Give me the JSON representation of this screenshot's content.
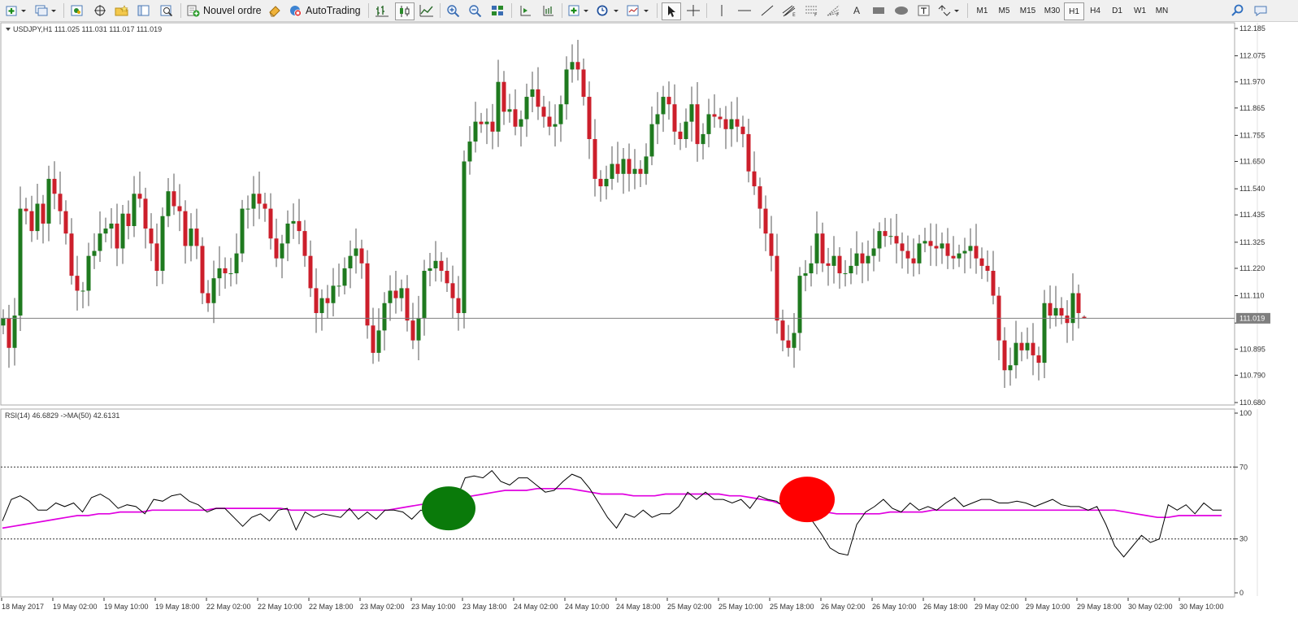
{
  "toolbar": {
    "new_order_label": "Nouvel ordre",
    "autotrading_label": "AutoTrading",
    "text_tool_label": "A",
    "timeframes": [
      "M1",
      "M5",
      "M15",
      "M30",
      "H1",
      "H4",
      "D1",
      "W1",
      "MN"
    ],
    "active_timeframe": "H1"
  },
  "main_chart": {
    "header": "USDJPY,H1  111.025 111.031 111.017 111.019",
    "price_ticks": [
      "112.185",
      "112.075",
      "111.970",
      "111.865",
      "111.755",
      "111.650",
      "111.540",
      "111.435",
      "111.325",
      "111.220",
      "111.110",
      "111.000",
      "110.895",
      "110.790",
      "110.680"
    ],
    "current_price_label": "111.019",
    "current_price": 111.019,
    "colors": {
      "bull": "#1f7a1f",
      "bear": "#cc1f2b",
      "wick": "#555555",
      "axis": "#808080"
    }
  },
  "chart_data": [
    {
      "type": "candlestick",
      "title": "USDJPY,H1",
      "ylim": [
        110.68,
        112.185
      ],
      "x_labels": [
        "18 May 2017",
        "19 May 02:00",
        "19 May 10:00",
        "19 May 18:00",
        "22 May 02:00",
        "22 May 10:00",
        "22 May 18:00",
        "23 May 02:00",
        "23 May 10:00",
        "23 May 18:00",
        "24 May 02:00",
        "24 May 10:00",
        "24 May 18:00",
        "25 May 02:00",
        "25 May 10:00",
        "25 May 18:00",
        "26 May 02:00",
        "26 May 10:00",
        "26 May 18:00",
        "29 May 02:00",
        "29 May 10:00",
        "29 May 18:00",
        "30 May 02:00",
        "30 May 10:00"
      ],
      "closes": [
        111.02,
        110.9,
        111.03,
        111.46,
        111.45,
        111.37,
        111.48,
        111.4,
        111.58,
        111.52,
        111.45,
        111.36,
        111.19,
        111.13,
        111.13,
        111.27,
        111.29,
        111.36,
        111.38,
        111.4,
        111.3,
        111.44,
        111.39,
        111.52,
        111.5,
        111.38,
        111.32,
        111.21,
        111.43,
        111.53,
        111.47,
        111.45,
        111.31,
        111.38,
        111.31,
        111.12,
        111.08,
        111.18,
        111.22,
        111.2,
        111.2,
        111.28,
        111.46,
        111.46,
        111.52,
        111.48,
        111.46,
        111.34,
        111.26,
        111.32,
        111.4,
        111.41,
        111.37,
        111.27,
        111.14,
        111.04,
        111.1,
        111.08,
        111.15,
        111.15,
        111.22,
        111.27,
        111.3,
        111.24,
        110.99,
        110.88,
        110.97,
        111.08,
        111.13,
        111.1,
        111.14,
        111.01,
        110.93,
        111.02,
        111.21,
        111.22,
        111.25,
        111.21,
        111.16,
        111.1,
        111.04,
        111.65,
        111.73,
        111.81,
        111.8,
        111.81,
        111.77,
        111.97,
        111.85,
        111.86,
        111.79,
        111.82,
        111.91,
        111.94,
        111.87,
        111.83,
        111.79,
        111.8,
        111.88,
        112.02,
        112.05,
        112.02,
        111.91,
        111.74,
        111.58,
        111.55,
        111.58,
        111.64,
        111.6,
        111.66,
        111.6,
        111.62,
        111.6,
        111.67,
        111.8,
        111.84,
        111.91,
        111.88,
        111.77,
        111.74,
        111.81,
        111.88,
        111.72,
        111.76,
        111.84,
        111.83,
        111.82,
        111.78,
        111.82,
        111.79,
        111.76,
        111.61,
        111.55,
        111.46,
        111.36,
        111.27,
        111.01,
        110.93,
        110.9,
        110.96,
        111.19,
        111.2,
        111.24,
        111.36,
        111.24,
        111.23,
        111.27,
        111.2,
        111.2,
        111.23,
        111.28,
        111.24,
        111.27,
        111.3,
        111.37,
        111.35,
        111.35,
        111.32,
        111.29,
        111.26,
        111.24,
        111.32,
        111.33,
        111.31,
        111.3,
        111.32,
        111.27,
        111.26,
        111.28,
        111.29,
        111.31,
        111.26,
        111.23,
        111.21,
        111.11,
        110.93,
        110.81,
        110.83,
        110.92,
        110.89,
        110.92,
        110.87,
        110.84,
        111.08,
        111.03,
        111.06,
        111.03,
        111.0,
        111.12,
        111.04,
        111.02
      ],
      "last": {
        "open": 111.025,
        "high": 111.031,
        "low": 111.017,
        "close": 111.019
      }
    },
    {
      "type": "line",
      "title": "RSI(14) 46.6829  ->MA(50) 42.6131",
      "ylim": [
        0,
        100
      ],
      "y_ticks": [
        100,
        70,
        30,
        0
      ],
      "levels": [
        70,
        30
      ],
      "series": [
        {
          "name": "RSI(14)",
          "color": "#000000",
          "values": [
            40,
            52,
            54,
            51,
            46,
            46,
            50,
            48,
            50,
            45,
            53,
            55,
            52,
            47,
            49,
            48,
            44,
            52,
            51,
            54,
            55,
            51,
            49,
            45,
            47,
            47,
            42,
            37,
            42,
            44,
            40,
            46,
            47,
            35,
            45,
            42,
            44,
            43,
            42,
            47,
            41,
            45,
            41,
            46,
            46,
            45,
            41,
            46,
            45,
            50,
            48,
            52,
            64,
            65,
            64,
            68,
            62,
            60,
            64,
            64,
            60,
            56,
            57,
            62,
            66,
            64,
            58,
            50,
            42,
            36,
            44,
            42,
            46,
            42,
            44,
            44,
            48,
            56,
            52,
            56,
            52,
            52,
            50,
            52,
            47,
            54,
            52,
            51,
            47,
            52,
            44,
            40,
            33,
            25,
            22,
            21,
            38,
            45,
            48,
            52,
            47,
            45,
            50,
            46,
            48,
            46,
            50,
            53,
            48,
            50,
            52,
            52,
            50,
            50,
            51,
            50,
            48,
            50,
            52,
            49,
            48,
            48,
            46,
            48,
            38,
            26,
            20,
            26,
            32,
            28,
            30,
            49,
            46,
            49,
            44,
            50,
            46,
            46
          ]
        },
        {
          "name": "MA(50)",
          "color": "#e000e0",
          "values": [
            36,
            37,
            38,
            39,
            40,
            41,
            42,
            43,
            43,
            44,
            44,
            45,
            45,
            45,
            46,
            46,
            46,
            46,
            46,
            46,
            47,
            47,
            47,
            47,
            47,
            47,
            47,
            46,
            46,
            46,
            46,
            46,
            46,
            46,
            46,
            46,
            46,
            47,
            48,
            49,
            50,
            51,
            52,
            53,
            54,
            55,
            56,
            57,
            57,
            57,
            58,
            58,
            58,
            58,
            57,
            56,
            55,
            55,
            55,
            54,
            54,
            54,
            55,
            55,
            55,
            55,
            55,
            55,
            54,
            54,
            53,
            52,
            51,
            49,
            47,
            46,
            45,
            45,
            44,
            44,
            44,
            44,
            44,
            45,
            45,
            45,
            45,
            46,
            46,
            46,
            46,
            46,
            46,
            46,
            46,
            46,
            46,
            46,
            46,
            46,
            46,
            46,
            46,
            46,
            46,
            45,
            44,
            43,
            42,
            42,
            43,
            43,
            43,
            43,
            43
          ]
        }
      ]
    }
  ],
  "rsi_panel": {
    "header": "RSI(14) 46.6829  ->MA(50) 42.6131",
    "axis_labels": [
      "100",
      "70",
      "30",
      "0"
    ],
    "markers": [
      {
        "name": "buy-signal",
        "color": "#0a7a0a",
        "rsi": 47
      },
      {
        "name": "sell-signal",
        "color": "#ff0000",
        "rsi": 52
      }
    ]
  }
}
